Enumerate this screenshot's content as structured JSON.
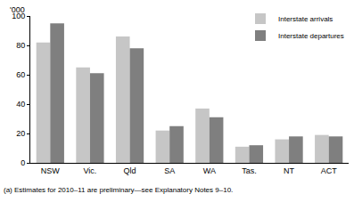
{
  "chart_data": {
    "type": "bar",
    "ylabel": "'000",
    "note": "(a) Estimates for 2010–11 are preliminary—see Explanatory Notes 9–10.",
    "categories": [
      "NSW",
      "Vic.",
      "Qld",
      "SA",
      "WA",
      "Tas.",
      "NT",
      "ACT"
    ],
    "series": [
      {
        "name": "Interstate arrivals",
        "color": "#c6c6c6",
        "values": [
          82,
          65,
          86,
          22,
          37,
          11,
          16,
          19
        ]
      },
      {
        "name": "Interstate departures",
        "color": "#7f7f7f",
        "values": [
          95,
          61,
          78,
          25,
          31,
          12,
          18,
          18
        ]
      }
    ],
    "ylim": [
      0,
      100
    ],
    "yticks": [
      0,
      20,
      40,
      60,
      80,
      100
    ],
    "grid": true,
    "legend": "top right"
  }
}
